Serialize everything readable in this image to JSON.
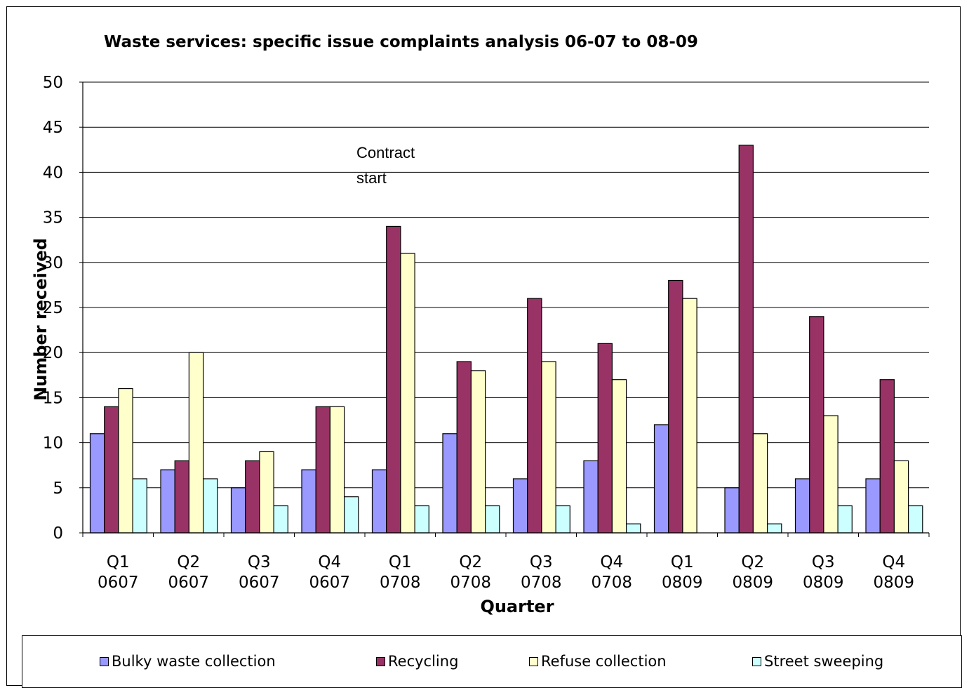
{
  "chart_data": {
    "type": "bar",
    "title": "Waste services: specific issue complaints analysis 06-07 to 08-09",
    "xlabel": "Quarter",
    "ylabel": "Number received",
    "ylim": [
      0,
      50
    ],
    "yticks": [
      "0",
      "5",
      "10",
      "15",
      "20",
      "25",
      "30",
      "35",
      "40",
      "45",
      "50"
    ],
    "grid": "horizontal",
    "categories": [
      [
        "Q1",
        "0607"
      ],
      [
        "Q2",
        "0607"
      ],
      [
        "Q3",
        "0607"
      ],
      [
        "Q4",
        "0607"
      ],
      [
        "Q1",
        "0708"
      ],
      [
        "Q2",
        "0708"
      ],
      [
        "Q3",
        "0708"
      ],
      [
        "Q4",
        "0708"
      ],
      [
        "Q1",
        "0809"
      ],
      [
        "Q2",
        "0809"
      ],
      [
        "Q3",
        "0809"
      ],
      [
        "Q4",
        "0809"
      ]
    ],
    "series": [
      {
        "name": "Bulky waste collection",
        "color": "#9999ff",
        "values": [
          11,
          7,
          5,
          7,
          7,
          11,
          6,
          8,
          12,
          5,
          6,
          6
        ]
      },
      {
        "name": "Recycling",
        "color": "#993366",
        "values": [
          14,
          8,
          8,
          14,
          34,
          19,
          26,
          21,
          28,
          43,
          24,
          17
        ]
      },
      {
        "name": "Refuse collection",
        "color": "#ffffcc",
        "values": [
          16,
          20,
          9,
          14,
          31,
          18,
          19,
          17,
          26,
          11,
          13,
          8
        ]
      },
      {
        "name": "Street sweeping",
        "color": "#ccffff",
        "values": [
          6,
          6,
          3,
          4,
          3,
          3,
          3,
          1,
          0,
          1,
          3,
          3
        ]
      }
    ],
    "annotation": {
      "lines": [
        "Contract",
        "start"
      ]
    },
    "legend_position": "bottom"
  }
}
